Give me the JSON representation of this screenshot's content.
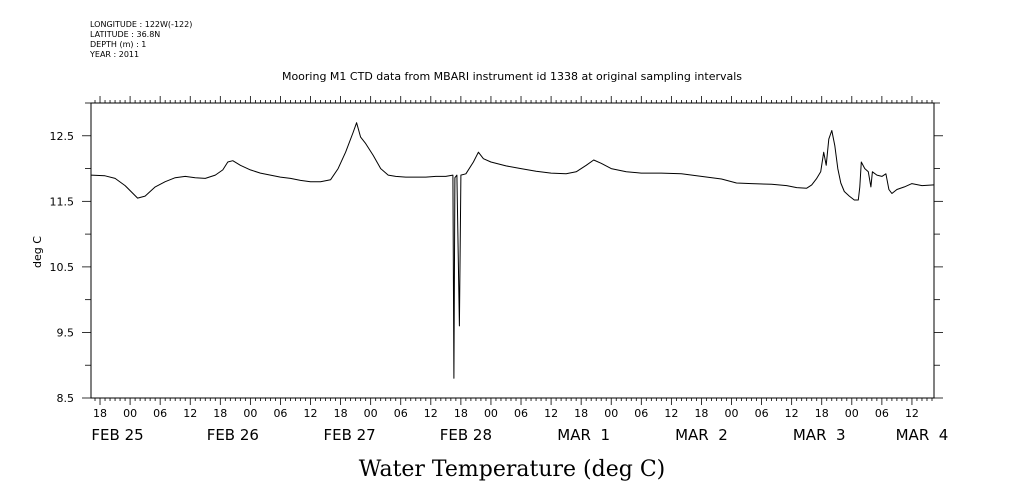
{
  "header": {
    "meta_lines": [
      "LONGITUDE : 122W(-122)",
      "LATITUDE : 36.8N",
      "DEPTH (m) : 1",
      "YEAR : 2011"
    ]
  },
  "chart_data": {
    "type": "line",
    "title": "Mooring M1 CTD data from MBARI instrument id 1338 at original sampling intervals",
    "xlabel": "Water Temperature (deg C)",
    "ylabel": "deg C",
    "ylim": [
      8.5,
      13.0
    ],
    "y_ticks": [
      8.5,
      9.5,
      10.5,
      11.5,
      12.5
    ],
    "y_tick_labels": [
      "8.5",
      "9.5",
      "10.5",
      "11.5",
      "12.5"
    ],
    "xlim": [
      -7.8,
      160.4
    ],
    "x_unit": "hours since 2011-02-25 00:00",
    "x_hour_ticks": [
      -6,
      0,
      6,
      12,
      18,
      24,
      30,
      36,
      42,
      48,
      54,
      60,
      66,
      72,
      78,
      84,
      90,
      96,
      102,
      108,
      114,
      120,
      126,
      132,
      138,
      144,
      150,
      156
    ],
    "x_hour_labels": [
      "18",
      "00",
      "06",
      "12",
      "18",
      "00",
      "06",
      "12",
      "18",
      "00",
      "06",
      "12",
      "18",
      "00",
      "06",
      "12",
      "18",
      "00",
      "06",
      "12",
      "18",
      "00",
      "06",
      "12",
      "18",
      "00",
      "06",
      "12"
    ],
    "x_day_labels": [
      {
        "hour": -2.5,
        "label": "FEB 25"
      },
      {
        "hour": 20.5,
        "label": "FEB 26"
      },
      {
        "hour": 43.8,
        "label": "FEB 27"
      },
      {
        "hour": 67.0,
        "label": "FEB 28"
      },
      {
        "hour": 90.5,
        "label": "MAR  1"
      },
      {
        "hour": 114.0,
        "label": "MAR  2"
      },
      {
        "hour": 137.5,
        "label": "MAR  3"
      },
      {
        "hour": 158.0,
        "label": "MAR  4"
      }
    ],
    "grid": false,
    "series": [
      {
        "name": "",
        "color": "#000000",
        "points": [
          [
            -7.8,
            11.9
          ],
          [
            -5,
            11.89
          ],
          [
            -3,
            11.85
          ],
          [
            -1,
            11.74
          ],
          [
            1.5,
            11.55
          ],
          [
            3,
            11.58
          ],
          [
            5,
            11.72
          ],
          [
            7,
            11.8
          ],
          [
            9,
            11.86
          ],
          [
            11,
            11.88
          ],
          [
            13,
            11.86
          ],
          [
            15,
            11.85
          ],
          [
            17,
            11.9
          ],
          [
            18.5,
            11.98
          ],
          [
            19.5,
            12.1
          ],
          [
            20.5,
            12.12
          ],
          [
            22,
            12.05
          ],
          [
            24,
            11.98
          ],
          [
            26,
            11.93
          ],
          [
            28,
            11.9
          ],
          [
            30,
            11.87
          ],
          [
            32,
            11.85
          ],
          [
            34,
            11.82
          ],
          [
            36,
            11.8
          ],
          [
            38,
            11.8
          ],
          [
            40,
            11.83
          ],
          [
            41.5,
            12.0
          ],
          [
            43,
            12.25
          ],
          [
            44.5,
            12.55
          ],
          [
            45.2,
            12.7
          ],
          [
            46,
            12.48
          ],
          [
            47,
            12.38
          ],
          [
            48.5,
            12.2
          ],
          [
            50,
            12.0
          ],
          [
            51.5,
            11.9
          ],
          [
            53,
            11.88
          ],
          [
            55,
            11.87
          ],
          [
            57,
            11.87
          ],
          [
            59,
            11.87
          ],
          [
            61,
            11.88
          ],
          [
            63,
            11.88
          ],
          [
            64.4,
            11.9
          ],
          [
            64.6,
            8.8
          ],
          [
            64.8,
            11.86
          ],
          [
            65.2,
            11.9
          ],
          [
            65.7,
            9.6
          ],
          [
            66,
            11.9
          ],
          [
            67,
            11.92
          ],
          [
            68.5,
            12.1
          ],
          [
            69.5,
            12.25
          ],
          [
            70.5,
            12.15
          ],
          [
            72,
            12.1
          ],
          [
            75,
            12.04
          ],
          [
            78,
            12.0
          ],
          [
            81,
            11.96
          ],
          [
            84,
            11.93
          ],
          [
            87,
            11.92
          ],
          [
            89,
            11.95
          ],
          [
            91,
            12.05
          ],
          [
            92.5,
            12.13
          ],
          [
            94,
            12.08
          ],
          [
            96,
            12.0
          ],
          [
            99,
            11.95
          ],
          [
            102,
            11.93
          ],
          [
            106,
            11.93
          ],
          [
            110,
            11.92
          ],
          [
            114,
            11.88
          ],
          [
            118,
            11.84
          ],
          [
            121,
            11.78
          ],
          [
            124,
            11.77
          ],
          [
            128,
            11.76
          ],
          [
            131,
            11.74
          ],
          [
            133,
            11.71
          ],
          [
            135,
            11.7
          ],
          [
            136,
            11.75
          ],
          [
            137,
            11.85
          ],
          [
            137.8,
            11.95
          ],
          [
            138.4,
            12.25
          ],
          [
            138.9,
            12.05
          ],
          [
            139.4,
            12.45
          ],
          [
            140,
            12.58
          ],
          [
            140.6,
            12.35
          ],
          [
            141.2,
            12.0
          ],
          [
            141.8,
            11.78
          ],
          [
            142.5,
            11.65
          ],
          [
            143.5,
            11.58
          ],
          [
            144.5,
            11.52
          ],
          [
            145.3,
            11.52
          ],
          [
            145.6,
            11.72
          ],
          [
            145.9,
            12.1
          ],
          [
            146.6,
            12.0
          ],
          [
            147.3,
            11.95
          ],
          [
            147.8,
            11.72
          ],
          [
            148.1,
            11.95
          ],
          [
            149,
            11.9
          ],
          [
            150,
            11.88
          ],
          [
            150.8,
            11.92
          ],
          [
            151.4,
            11.68
          ],
          [
            152,
            11.62
          ],
          [
            153,
            11.68
          ],
          [
            154.5,
            11.72
          ],
          [
            156,
            11.77
          ],
          [
            158,
            11.74
          ],
          [
            160.4,
            11.75
          ]
        ]
      }
    ]
  }
}
